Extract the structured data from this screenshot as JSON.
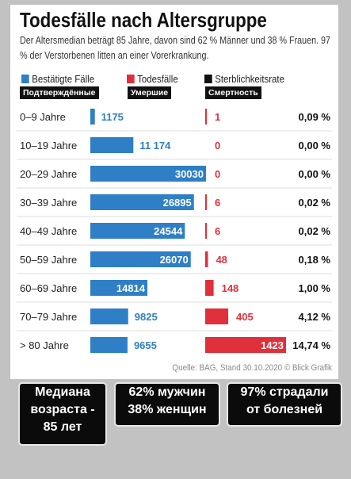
{
  "header": {
    "title": "Todesfälle nach Altersgruppe",
    "subtitle": "Der Altersmedian beträgt 85 Jahre, davon sind 62 % Männer und 38 % Frauen. 97 % der Verstorbenen litten an einer Vorerkrankung."
  },
  "legend": {
    "items": [
      {
        "label": "Bestätigte Fälle",
        "ru": "Подтверждённые",
        "color": "#2f7fc6"
      },
      {
        "label": "Todesfälle",
        "ru": "Умершие",
        "color": "#e0303c"
      },
      {
        "label": "Sterblichkeitsrate",
        "ru": "Смертность",
        "color": "#111111"
      }
    ]
  },
  "chart_data": {
    "type": "table",
    "categories": [
      "0–9 Jahre",
      "10–19 Jahre",
      "20–29 Jahre",
      "30–39 Jahre",
      "40–49 Jahre",
      "50–59 Jahre",
      "60–69 Jahre",
      "70–79 Jahre",
      "> 80 Jahre"
    ],
    "series": [
      {
        "name": "Bestätigte Fälle",
        "values": [
          1175,
          11174,
          30030,
          26895,
          24544,
          26070,
          14814,
          9825,
          9655
        ],
        "labels": [
          "1175",
          "11 174",
          "30030",
          "26895",
          "24544",
          "26070",
          "14814",
          "9825",
          "9655"
        ],
        "color": "#2f7fc6"
      },
      {
        "name": "Todesfälle",
        "values": [
          1,
          0,
          0,
          6,
          6,
          48,
          148,
          405,
          1423
        ],
        "labels": [
          "1",
          "0",
          "0",
          "6",
          "6",
          "48",
          "148",
          "405",
          "1423"
        ],
        "color": "#e0303c"
      },
      {
        "name": "Sterblichkeitsrate",
        "values": [
          0.09,
          0.0,
          0.0,
          0.02,
          0.02,
          0.18,
          1.0,
          4.12,
          14.74
        ],
        "labels": [
          "0,09 %",
          "0,00 %",
          "0,00 %",
          "0,02 %",
          "0,02 %",
          "0,18 %",
          "1,00 %",
          "4,12 %",
          "14,74 %"
        ],
        "color": "#111111"
      }
    ],
    "max_cases": 30030,
    "max_deaths": 1423
  },
  "source": "Quelle: BAG, Stand 30.10.2020   © Blick Grafik",
  "overlay_boxes": [
    {
      "lines": [
        "Медиана",
        "возраста -",
        "85 лет"
      ]
    },
    {
      "lines": [
        "62% мужчин",
        "38% женщин"
      ]
    },
    {
      "lines": [
        "97% страдали",
        "от болезней"
      ]
    }
  ]
}
